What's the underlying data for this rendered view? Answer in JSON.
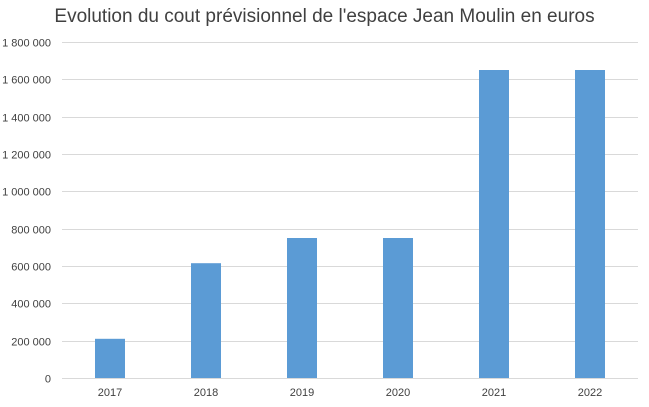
{
  "chart_data": {
    "type": "bar",
    "title": "Evolution du cout prévisionnel de l'espace Jean Moulin en euros",
    "categories": [
      "2017",
      "2018",
      "2019",
      "2020",
      "2021",
      "2022"
    ],
    "values": [
      210000,
      615000,
      750000,
      750000,
      1650000,
      1650000
    ],
    "ylim": [
      0,
      1800000
    ],
    "yticks": [
      0,
      200000,
      400000,
      600000,
      800000,
      1000000,
      1200000,
      1400000,
      1600000,
      1800000
    ],
    "ytick_labels": [
      "0",
      "200 000",
      "400 000",
      "600 000",
      "800 000",
      "1 000 000",
      "1 200 000",
      "1 400 000",
      "1 600 000",
      "1 800 000"
    ],
    "xlabel": "",
    "ylabel": "",
    "grid": true,
    "legend": "none",
    "bar_color": "#5B9BD5",
    "grid_color": "#D9D9D9"
  }
}
